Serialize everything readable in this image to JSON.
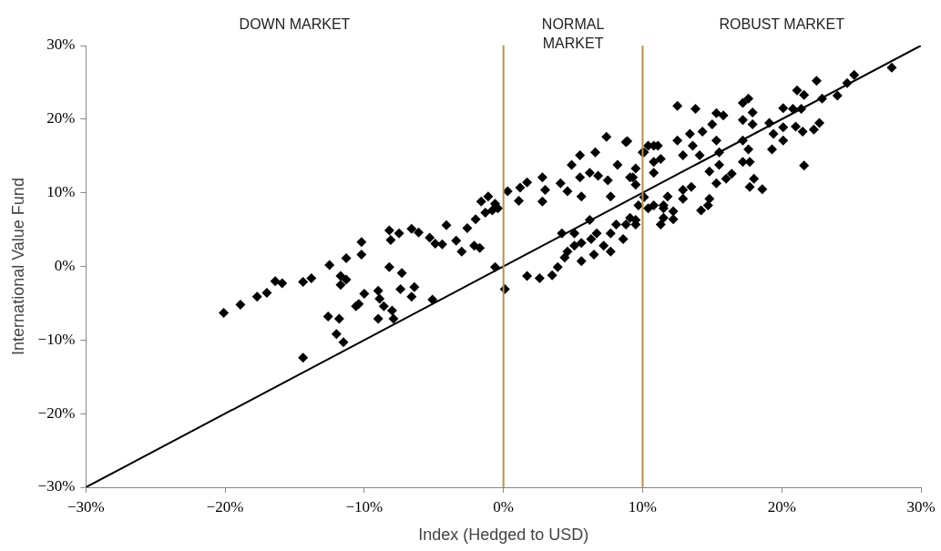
{
  "chart_data": {
    "type": "scatter",
    "xlabel": "Index (Hedged to USD)",
    "ylabel": "International Value Fund",
    "annotations": [
      "DOWN MARKET",
      "NORMAL MARKET",
      "ROBUST MARKET"
    ],
    "xlim": [
      -30,
      30
    ],
    "ylim": [
      -30,
      30
    ],
    "xticks": [
      {
        "value": -30,
        "label": "−30%"
      },
      {
        "value": -20,
        "label": "−20%"
      },
      {
        "value": -10,
        "label": "−10%"
      },
      {
        "value": 0,
        "label": "0%"
      },
      {
        "value": 10,
        "label": "10%"
      },
      {
        "value": 20,
        "label": "20%"
      },
      {
        "value": 30,
        "label": "30%"
      }
    ],
    "yticks": [
      {
        "value": -30,
        "label": "−30%"
      },
      {
        "value": -20,
        "label": "−20%"
      },
      {
        "value": -10,
        "label": "−10%"
      },
      {
        "value": 0,
        "label": "0%"
      },
      {
        "value": 10,
        "label": "10%"
      },
      {
        "value": 20,
        "label": "20%"
      },
      {
        "value": 30,
        "label": "30%"
      }
    ],
    "grid": false,
    "legend": false,
    "ref_lines": [
      {
        "axis": "x",
        "value": 0,
        "color": "#b8924a"
      },
      {
        "axis": "x",
        "value": 10,
        "color": "#b8924a"
      }
    ],
    "series": [
      {
        "type": "line",
        "color": "#000000",
        "marker": "none",
        "x": [
          -30,
          30
        ],
        "values": [
          -30,
          30
        ]
      },
      {
        "color": "#000000",
        "marker": "diamond",
        "x": [
          -20.1,
          -18.9,
          -17.7,
          -17.0,
          -16.4,
          -15.9,
          -14.4,
          -13.8,
          -12.5,
          -11.3,
          -10.2,
          -10.2,
          -11.7,
          -11.3,
          -11.7,
          -8.2,
          -7.3,
          -7.4,
          -6.4,
          -6.6,
          -10.0,
          -9.0,
          -8.9,
          -8.6,
          -8.0,
          -10.4,
          -10.6,
          -12.6,
          -11.8,
          -9.0,
          -7.9,
          -12.0,
          -11.5,
          -14.4,
          -5.1,
          -8.2,
          -7.5,
          -8.1,
          -6.6,
          -6.1,
          -4.1,
          -5.3,
          -4.9,
          -4.4,
          -3.4,
          -3.0,
          -2.6,
          -2.1,
          -1.7,
          -2.0,
          -1.3,
          -0.8,
          -0.6,
          -0.6,
          0.1,
          7.4,
          8.8,
          6.6,
          5.5,
          4.9,
          2.8,
          1.7,
          1.2,
          0.3,
          -1.1,
          -1.6,
          -0.4,
          1.1,
          2.8,
          3.0,
          4.1,
          4.6,
          5.6,
          5.5,
          6.2,
          6.8,
          7.5,
          7.7,
          8.2,
          9.1,
          9.5,
          9.5,
          10.1,
          10.4,
          11.1,
          10.8,
          10.8,
          12.5,
          12.9,
          10.1,
          10.4,
          11.5,
          11.5,
          12.2,
          11.3,
          12.9,
          6.2,
          4.2,
          5.1,
          5.6,
          4.6,
          4.4,
          6.3,
          6.7,
          7.2,
          7.7,
          8.1,
          9.1,
          9.5,
          8.6,
          5.6,
          3.9,
          3.5,
          2.6,
          1.7,
          5.1,
          7.7,
          6.5,
          27.9,
          25.2,
          24.7,
          22.5,
          24.0,
          22.9,
          21.1,
          21.6,
          20.1,
          20.8,
          21.4,
          17.6,
          17.2,
          17.9,
          12.5,
          13.8,
          15.3,
          15.8,
          17.2,
          17.9,
          15.0,
          19.1,
          20.1,
          21.0,
          21.5,
          22.3,
          22.7,
          14.3,
          13.4,
          15.3,
          17.2,
          19.4,
          20.1,
          19.3,
          17.6,
          13.6,
          14.1,
          15.5,
          11.3,
          10.0,
          10.8,
          8.9,
          17.2,
          17.7,
          15.5,
          14.8,
          16.4,
          16.0,
          15.3,
          18.0,
          18.6,
          17.7,
          13.5,
          12.9,
          21.6,
          14.8,
          14.7,
          14.2,
          11.8,
          11.5,
          12.2,
          10.8,
          9.3,
          9.7,
          9.5,
          8.8
        ],
        "values": [
          -6.3,
          -5.2,
          -4.1,
          -3.6,
          -2.0,
          -2.3,
          -2.1,
          -1.6,
          0.2,
          1.1,
          1.6,
          3.3,
          -1.3,
          -1.8,
          -2.5,
          -0.1,
          -0.9,
          -3.1,
          -2.8,
          -4.1,
          -3.7,
          -3.3,
          -4.4,
          -5.4,
          -6.0,
          -5.1,
          -5.4,
          -6.8,
          -7.1,
          -7.1,
          -7.1,
          -9.2,
          -10.3,
          -12.4,
          -4.5,
          4.9,
          4.5,
          3.6,
          5.1,
          4.6,
          5.6,
          3.9,
          3.1,
          3.0,
          3.5,
          2.0,
          5.2,
          2.8,
          2.5,
          6.4,
          7.3,
          7.6,
          8.5,
          -0.1,
          -3.1,
          17.6,
          16.9,
          15.5,
          15.1,
          13.8,
          12.1,
          11.4,
          10.7,
          10.2,
          9.5,
          8.8,
          7.9,
          8.9,
          8.8,
          10.4,
          11.3,
          10.2,
          9.5,
          12.1,
          12.7,
          12.3,
          11.7,
          9.5,
          13.8,
          12.1,
          13.3,
          11.1,
          15.5,
          16.4,
          16.4,
          14.2,
          12.7,
          17.1,
          15.1,
          9.4,
          7.9,
          8.3,
          6.6,
          7.5,
          5.7,
          10.4,
          6.3,
          4.5,
          4.5,
          3.2,
          2.0,
          1.2,
          3.7,
          4.5,
          2.8,
          4.5,
          5.7,
          6.6,
          5.7,
          3.7,
          0.7,
          -0.1,
          -1.2,
          -1.6,
          -1.3,
          2.8,
          2.0,
          1.6,
          27.0,
          26.0,
          24.9,
          25.2,
          23.2,
          22.8,
          23.9,
          23.3,
          21.5,
          21.4,
          21.4,
          22.8,
          22.2,
          20.9,
          21.8,
          21.4,
          20.8,
          20.5,
          19.9,
          19.3,
          19.3,
          19.5,
          18.9,
          19.0,
          18.3,
          18.6,
          19.5,
          18.3,
          18.0,
          17.1,
          17.1,
          18.0,
          17.1,
          15.9,
          15.9,
          16.4,
          15.1,
          15.5,
          14.6,
          15.5,
          16.4,
          17.0,
          14.2,
          14.2,
          13.8,
          12.9,
          12.6,
          11.9,
          11.3,
          11.9,
          10.5,
          10.8,
          10.8,
          9.2,
          13.7,
          9.2,
          8.3,
          7.6,
          9.5,
          7.9,
          6.4,
          8.3,
          12.1,
          8.3,
          6.3,
          5.7
        ]
      }
    ]
  }
}
